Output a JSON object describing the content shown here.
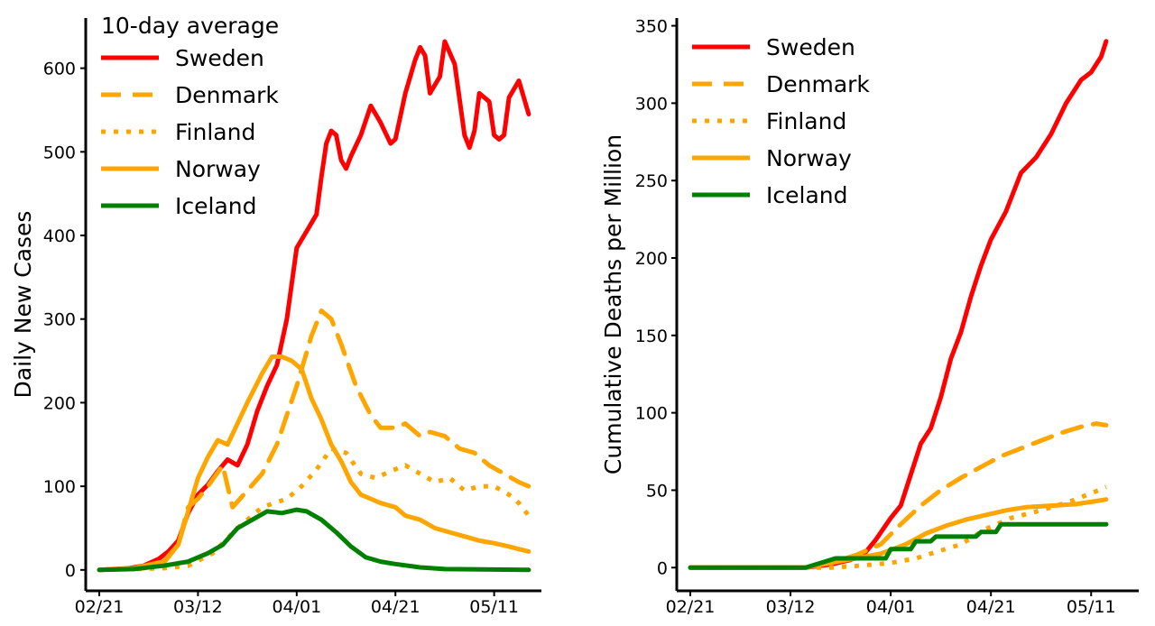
{
  "chart_data": [
    {
      "type": "line",
      "ylabel": "Daily New Cases",
      "legend_title": "10-day average",
      "legend_position": "top-left",
      "ylim": [
        -25,
        660
      ],
      "yticks": [
        0,
        100,
        200,
        300,
        400,
        500,
        600
      ],
      "xlim": [
        "02/21",
        "05/16"
      ],
      "xticks": [
        "02/21",
        "03/12",
        "04/01",
        "04/21",
        "05/11"
      ],
      "grid": false,
      "series": [
        {
          "name": "Sweden",
          "color": "#ff0000",
          "dash": "solid",
          "points": [
            [
              "02/21",
              0
            ],
            [
              "02/27",
              2
            ],
            [
              "03/01",
              5
            ],
            [
              "03/04",
              13
            ],
            [
              "03/06",
              22
            ],
            [
              "03/08",
              35
            ],
            [
              "03/10",
              68
            ],
            [
              "03/12",
              90
            ],
            [
              "03/14",
              102
            ],
            [
              "03/16",
              118
            ],
            [
              "03/18",
              132
            ],
            [
              "03/20",
              125
            ],
            [
              "03/22",
              150
            ],
            [
              "03/24",
              190
            ],
            [
              "03/26",
              220
            ],
            [
              "03/28",
              245
            ],
            [
              "03/30",
              300
            ],
            [
              "04/01",
              385
            ],
            [
              "04/03",
              405
            ],
            [
              "04/05",
              425
            ],
            [
              "04/06",
              470
            ],
            [
              "04/07",
              510
            ],
            [
              "04/08",
              525
            ],
            [
              "04/09",
              520
            ],
            [
              "04/10",
              490
            ],
            [
              "04/11",
              480
            ],
            [
              "04/12",
              495
            ],
            [
              "04/14",
              520
            ],
            [
              "04/16",
              555
            ],
            [
              "04/18",
              535
            ],
            [
              "04/20",
              510
            ],
            [
              "04/21",
              515
            ],
            [
              "04/23",
              570
            ],
            [
              "04/25",
              610
            ],
            [
              "04/26",
              625
            ],
            [
              "04/27",
              615
            ],
            [
              "04/28",
              570
            ],
            [
              "04/30",
              590
            ],
            [
              "05/01",
              632
            ],
            [
              "05/03",
              605
            ],
            [
              "05/05",
              520
            ],
            [
              "05/06",
              505
            ],
            [
              "05/07",
              525
            ],
            [
              "05/08",
              570
            ],
            [
              "05/10",
              560
            ],
            [
              "05/11",
              520
            ],
            [
              "05/12",
              515
            ],
            [
              "05/13",
              520
            ],
            [
              "05/14",
              565
            ],
            [
              "05/16",
              585
            ],
            [
              "05/17",
              565
            ],
            [
              "05/18",
              545
            ]
          ]
        },
        {
          "name": "Denmark",
          "color": "#ffa500",
          "dash": "dashed",
          "points": [
            [
              "02/21",
              0
            ],
            [
              "03/01",
              2
            ],
            [
              "03/05",
              8
            ],
            [
              "03/08",
              30
            ],
            [
              "03/10",
              75
            ],
            [
              "03/12",
              85
            ],
            [
              "03/14",
              100
            ],
            [
              "03/17",
              125
            ],
            [
              "03/19",
              75
            ],
            [
              "03/22",
              95
            ],
            [
              "03/25",
              115
            ],
            [
              "03/28",
              150
            ],
            [
              "04/01",
              220
            ],
            [
              "04/04",
              280
            ],
            [
              "04/06",
              310
            ],
            [
              "04/08",
              300
            ],
            [
              "04/10",
              270
            ],
            [
              "04/13",
              220
            ],
            [
              "04/16",
              185
            ],
            [
              "04/18",
              170
            ],
            [
              "04/21",
              170
            ],
            [
              "04/23",
              175
            ],
            [
              "04/26",
              160
            ],
            [
              "04/28",
              165
            ],
            [
              "05/01",
              160
            ],
            [
              "05/04",
              145
            ],
            [
              "05/07",
              140
            ],
            [
              "05/10",
              125
            ],
            [
              "05/13",
              115
            ],
            [
              "05/16",
              105
            ],
            [
              "05/18",
              100
            ]
          ]
        },
        {
          "name": "Finland",
          "color": "#ffa500",
          "dash": "dotted",
          "points": [
            [
              "02/21",
              0
            ],
            [
              "03/05",
              2
            ],
            [
              "03/10",
              5
            ],
            [
              "03/15",
              20
            ],
            [
              "03/20",
              50
            ],
            [
              "03/25",
              75
            ],
            [
              "03/30",
              85
            ],
            [
              "04/02",
              100
            ],
            [
              "04/05",
              120
            ],
            [
              "04/08",
              145
            ],
            [
              "04/11",
              140
            ],
            [
              "04/14",
              115
            ],
            [
              "04/17",
              110
            ],
            [
              "04/20",
              118
            ],
            [
              "04/23",
              125
            ],
            [
              "04/26",
              115
            ],
            [
              "04/29",
              105
            ],
            [
              "05/02",
              110
            ],
            [
              "05/05",
              95
            ],
            [
              "05/08",
              100
            ],
            [
              "05/11",
              100
            ],
            [
              "05/14",
              90
            ],
            [
              "05/16",
              80
            ],
            [
              "05/18",
              65
            ]
          ]
        },
        {
          "name": "Norway",
          "color": "#ffa500",
          "dash": "solid",
          "points": [
            [
              "02/21",
              0
            ],
            [
              "02/28",
              2
            ],
            [
              "03/05",
              10
            ],
            [
              "03/08",
              30
            ],
            [
              "03/10",
              70
            ],
            [
              "03/12",
              110
            ],
            [
              "03/14",
              135
            ],
            [
              "03/16",
              155
            ],
            [
              "03/18",
              150
            ],
            [
              "03/20",
              175
            ],
            [
              "03/22",
              200
            ],
            [
              "03/25",
              235
            ],
            [
              "03/27",
              255
            ],
            [
              "03/29",
              255
            ],
            [
              "03/31",
              250
            ],
            [
              "04/02",
              240
            ],
            [
              "04/04",
              205
            ],
            [
              "04/06",
              180
            ],
            [
              "04/08",
              150
            ],
            [
              "04/10",
              130
            ],
            [
              "04/12",
              105
            ],
            [
              "04/14",
              90
            ],
            [
              "04/16",
              85
            ],
            [
              "04/18",
              80
            ],
            [
              "04/21",
              75
            ],
            [
              "04/23",
              65
            ],
            [
              "04/26",
              60
            ],
            [
              "04/29",
              50
            ],
            [
              "05/02",
              45
            ],
            [
              "05/05",
              40
            ],
            [
              "05/08",
              35
            ],
            [
              "05/11",
              32
            ],
            [
              "05/14",
              28
            ],
            [
              "05/18",
              22
            ]
          ]
        },
        {
          "name": "Iceland",
          "color": "#008000",
          "dash": "solid",
          "points": [
            [
              "02/21",
              0
            ],
            [
              "02/28",
              1
            ],
            [
              "03/05",
              5
            ],
            [
              "03/10",
              10
            ],
            [
              "03/14",
              20
            ],
            [
              "03/17",
              30
            ],
            [
              "03/20",
              50
            ],
            [
              "03/23",
              60
            ],
            [
              "03/26",
              70
            ],
            [
              "03/29",
              68
            ],
            [
              "04/01",
              72
            ],
            [
              "04/03",
              70
            ],
            [
              "04/06",
              60
            ],
            [
              "04/09",
              45
            ],
            [
              "04/12",
              28
            ],
            [
              "04/15",
              15
            ],
            [
              "04/18",
              10
            ],
            [
              "04/21",
              7
            ],
            [
              "04/26",
              3
            ],
            [
              "05/01",
              1
            ],
            [
              "05/18",
              0
            ]
          ]
        }
      ]
    },
    {
      "type": "line",
      "ylabel": "Cumulative Deaths per Million",
      "legend_position": "top-left",
      "ylim": [
        -15,
        355
      ],
      "yticks": [
        0,
        50,
        100,
        150,
        200,
        250,
        300,
        350
      ],
      "xlim": [
        "02/21",
        "05/16"
      ],
      "xticks": [
        "02/21",
        "03/12",
        "04/01",
        "04/21",
        "05/11"
      ],
      "grid": false,
      "series": [
        {
          "name": "Sweden",
          "color": "#ff0000",
          "dash": "solid",
          "points": [
            [
              "02/21",
              0
            ],
            [
              "03/15",
              0
            ],
            [
              "03/20",
              2
            ],
            [
              "03/24",
              5
            ],
            [
              "03/27",
              10
            ],
            [
              "03/29",
              18
            ],
            [
              "04/01",
              32
            ],
            [
              "04/03",
              40
            ],
            [
              "04/05",
              60
            ],
            [
              "04/07",
              80
            ],
            [
              "04/09",
              90
            ],
            [
              "04/11",
              110
            ],
            [
              "04/13",
              135
            ],
            [
              "04/15",
              152
            ],
            [
              "04/17",
              175
            ],
            [
              "04/19",
              195
            ],
            [
              "04/21",
              212
            ],
            [
              "04/24",
              230
            ],
            [
              "04/27",
              255
            ],
            [
              "04/30",
              265
            ],
            [
              "05/03",
              280
            ],
            [
              "05/06",
              300
            ],
            [
              "05/09",
              315
            ],
            [
              "05/11",
              320
            ],
            [
              "05/13",
              330
            ],
            [
              "05/14",
              340
            ]
          ]
        },
        {
          "name": "Denmark",
          "color": "#ffa500",
          "dash": "dashed",
          "points": [
            [
              "02/21",
              0
            ],
            [
              "03/15",
              0
            ],
            [
              "03/20",
              3
            ],
            [
              "03/25",
              8
            ],
            [
              "03/30",
              15
            ],
            [
              "04/03",
              28
            ],
            [
              "04/07",
              40
            ],
            [
              "04/11",
              50
            ],
            [
              "04/15",
              58
            ],
            [
              "04/19",
              65
            ],
            [
              "04/23",
              72
            ],
            [
              "04/27",
              77
            ],
            [
              "05/01",
              82
            ],
            [
              "05/05",
              87
            ],
            [
              "05/09",
              91
            ],
            [
              "05/12",
              93
            ],
            [
              "05/14",
              92
            ]
          ]
        },
        {
          "name": "Finland",
          "color": "#ffa500",
          "dash": "dotted",
          "points": [
            [
              "02/21",
              0
            ],
            [
              "03/20",
              0
            ],
            [
              "03/25",
              1
            ],
            [
              "04/01",
              3
            ],
            [
              "04/06",
              6
            ],
            [
              "04/10",
              10
            ],
            [
              "04/15",
              15
            ],
            [
              "04/20",
              25
            ],
            [
              "04/25",
              32
            ],
            [
              "05/01",
              37
            ],
            [
              "05/07",
              43
            ],
            [
              "05/11",
              48
            ],
            [
              "05/14",
              52
            ]
          ]
        },
        {
          "name": "Norway",
          "color": "#ffa500",
          "dash": "solid",
          "points": [
            [
              "02/21",
              0
            ],
            [
              "03/15",
              0
            ],
            [
              "03/20",
              3
            ],
            [
              "03/25",
              6
            ],
            [
              "03/30",
              9
            ],
            [
              "04/04",
              15
            ],
            [
              "04/08",
              22
            ],
            [
              "04/12",
              27
            ],
            [
              "04/16",
              31
            ],
            [
              "04/20",
              34
            ],
            [
              "04/24",
              37
            ],
            [
              "04/28",
              39
            ],
            [
              "05/03",
              40
            ],
            [
              "05/08",
              41
            ],
            [
              "05/12",
              43
            ],
            [
              "05/14",
              44
            ]
          ]
        },
        {
          "name": "Iceland",
          "color": "#008000",
          "dash": "solid",
          "points": [
            [
              "02/21",
              0
            ],
            [
              "03/15",
              0
            ],
            [
              "03/18",
              3
            ],
            [
              "03/21",
              6
            ],
            [
              "03/31",
              6
            ],
            [
              "04/01",
              12
            ],
            [
              "04/05",
              12
            ],
            [
              "04/06",
              17
            ],
            [
              "04/09",
              17
            ],
            [
              "04/10",
              20
            ],
            [
              "04/18",
              20
            ],
            [
              "04/19",
              23
            ],
            [
              "04/22",
              23
            ],
            [
              "04/23",
              28
            ],
            [
              "05/14",
              28
            ]
          ]
        }
      ]
    }
  ]
}
